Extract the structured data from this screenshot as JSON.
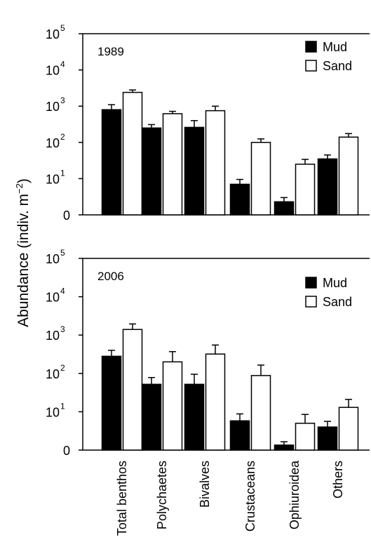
{
  "ylabel": "Abundance (indiv. m",
  "ylabel_sup": "−2",
  "ylabel_close": ")",
  "chart_data": [
    {
      "type": "bar",
      "panel_label": "1989",
      "yscale": "log",
      "ylim": [
        1,
        100000
      ],
      "zero_tick_label": "0",
      "ytick_exponents": [
        "1",
        "2",
        "3",
        "4",
        "5"
      ],
      "categories": [
        "Total benthos",
        "Polychaetes",
        "Bivalves",
        "Crustaceans",
        "Ophiuroidea",
        "Others"
      ],
      "legend_position": "top-right",
      "series": [
        {
          "name": "Mud",
          "color": "#000000",
          "values": [
            800,
            250,
            260,
            7,
            2.3,
            35
          ],
          "error_upper": [
            1100,
            310,
            400,
            9.5,
            3.0,
            45
          ]
        },
        {
          "name": "Sand",
          "color": "#ffffff",
          "values": [
            2400,
            620,
            750,
            100,
            25,
            140
          ],
          "error_upper": [
            2800,
            720,
            1000,
            125,
            34,
            175
          ]
        }
      ]
    },
    {
      "type": "bar",
      "panel_label": "2006",
      "yscale": "log",
      "ylim": [
        1,
        100000
      ],
      "zero_tick_label": "0",
      "ytick_exponents": [
        "1",
        "2",
        "3",
        "4",
        "5"
      ],
      "categories": [
        "Total benthos",
        "Polychaetes",
        "Bivalves",
        "Crustaceans",
        "Ophiuroidea",
        "Others"
      ],
      "legend_position": "top-right",
      "series": [
        {
          "name": "Mud",
          "color": "#000000",
          "values": [
            280,
            52,
            52,
            5.8,
            1.35,
            4.0
          ],
          "error_upper": [
            400,
            78,
            95,
            8.8,
            1.65,
            5.6
          ]
        },
        {
          "name": "Sand",
          "color": "#ffffff",
          "values": [
            1400,
            200,
            320,
            88,
            5.0,
            13
          ],
          "error_upper": [
            1950,
            370,
            550,
            165,
            8.5,
            21
          ]
        }
      ]
    }
  ]
}
